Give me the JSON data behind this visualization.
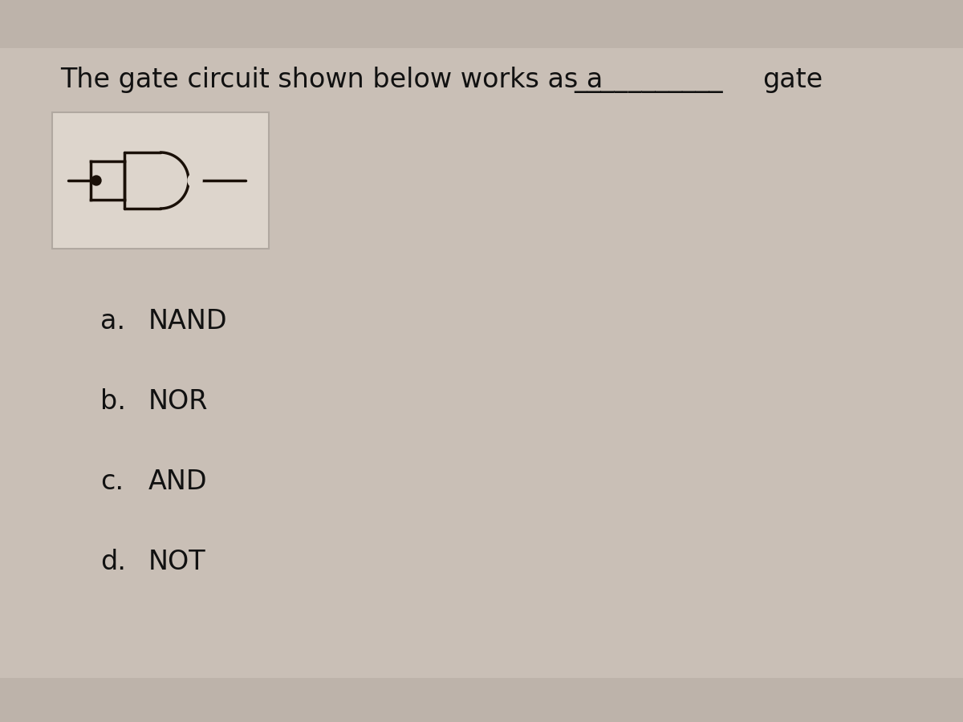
{
  "question_text": "The gate circuit shown below works as a",
  "blank": "___________",
  "gate_suffix": "gate",
  "options": [
    {
      "label": "a.",
      "text": "NAND"
    },
    {
      "label": "b.",
      "text": "NOR"
    },
    {
      "label": "c.",
      "text": "AND"
    },
    {
      "label": "d.",
      "text": "NOT"
    }
  ],
  "line_color": "#1a1008",
  "text_color": "#111111",
  "bg_overall": "#c9bfb6",
  "bg_band_top": "#bdb3aa",
  "bg_band_bot": "#bdb3aa",
  "circuit_box_color": "#ddd5cc",
  "font_size_question": 24,
  "font_size_options": 24
}
